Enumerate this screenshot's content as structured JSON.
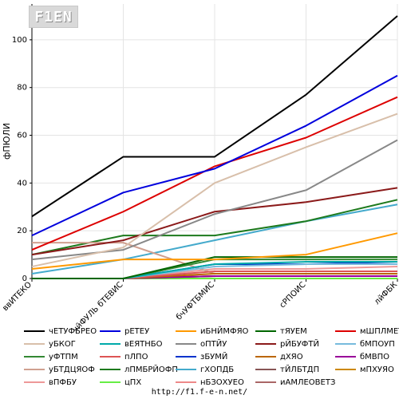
{
  "logo": {
    "text": "F1EN"
  },
  "footer": {
    "url": "http://f1.f-e-n.net/"
  },
  "chart_data": {
    "type": "line",
    "ylabel": "фПЮЛИ",
    "xlabel": "",
    "ylim": [
      0,
      115
    ],
    "yticks": [
      0,
      20,
      40,
      60,
      80,
      100
    ],
    "grid": true,
    "categories": [
      "ввИТЕКО",
      "чйФУЛЬ бТЕВИС",
      "бчУФТБМИС",
      "сРПОИС",
      "лйФБК"
    ],
    "series": [
      {
        "name": "чЕТУФБРЕО",
        "color": "#000000",
        "values": [
          26,
          51,
          51,
          77,
          110
        ]
      },
      {
        "name": "рЕТЕУ",
        "color": "#0000dd",
        "values": [
          18,
          36,
          46,
          64,
          85
        ]
      },
      {
        "name": "иБНЙМФЯО",
        "color": "#ff9900",
        "values": [
          4,
          8,
          8,
          10,
          19
        ]
      },
      {
        "name": "тЯУЕМ",
        "color": "#006600",
        "values": [
          0,
          0,
          9,
          9,
          9
        ]
      },
      {
        "name": "мШПЛМЕТ",
        "color": "#dd0000",
        "values": [
          12,
          28,
          47,
          59,
          76
        ]
      },
      {
        "name": "уБКОГ",
        "color": "#d8bfaa",
        "values": [
          5,
          13,
          40,
          55,
          69
        ]
      },
      {
        "name": "вЕЯТНБО",
        "color": "#00aaaa",
        "values": [
          0,
          0,
          6,
          7,
          7
        ]
      },
      {
        "name": "оПТЙУ",
        "color": "#888888",
        "values": [
          8,
          12,
          27,
          37,
          58
        ]
      },
      {
        "name": "рЙБУФТЙ",
        "color": "#8b1a1a",
        "values": [
          10,
          16,
          28,
          32,
          38
        ]
      },
      {
        "name": "бМПОУП",
        "color": "#77bbdd",
        "values": [
          0,
          0,
          5,
          6,
          6
        ]
      },
      {
        "name": "уФТПМ",
        "color": "#338833",
        "values": [
          0,
          0,
          8,
          8,
          8
        ]
      },
      {
        "name": "пЛПО",
        "color": "#dd5555",
        "values": [
          0,
          0,
          3,
          3,
          3
        ]
      },
      {
        "name": "зБУМЙ",
        "color": "#0033cc",
        "values": [
          0,
          0,
          6,
          6,
          7
        ]
      },
      {
        "name": "дХЯО",
        "color": "#bb6600",
        "values": [
          0,
          0,
          2,
          2,
          2
        ]
      },
      {
        "name": "бМВПО",
        "color": "#990099",
        "values": [
          0,
          0,
          1,
          1,
          1
        ]
      },
      {
        "name": "уБТДЦЯОФ",
        "color": "#d0a090",
        "values": [
          15,
          15,
          2,
          2,
          2
        ]
      },
      {
        "name": "лПМБРЙОФП",
        "color": "#1d7a1d",
        "values": [
          10,
          18,
          18,
          24,
          33
        ]
      },
      {
        "name": "гХОПДБ",
        "color": "#44aacc",
        "values": [
          2,
          8,
          16,
          24,
          31
        ]
      },
      {
        "name": "тЙЛБТДП",
        "color": "#885555",
        "values": [
          0,
          0,
          1,
          1,
          1
        ]
      },
      {
        "name": "мПХУЯО",
        "color": "#cc8800",
        "values": [
          0,
          0,
          1,
          1,
          1
        ]
      },
      {
        "name": "вПФБУ",
        "color": "#ee9999",
        "values": [
          0,
          0,
          4,
          4,
          5
        ]
      },
      {
        "name": "цПХ",
        "color": "#66ee44",
        "values": [
          0,
          0,
          0,
          0,
          0
        ]
      },
      {
        "name": "нБЗОХУЕО",
        "color": "#ee8888",
        "values": [
          0,
          0,
          0,
          0,
          0
        ]
      },
      {
        "name": "иАМЛЕОВЕТЗ",
        "color": "#aa6666",
        "values": [
          0,
          0,
          0,
          0,
          0
        ]
      }
    ],
    "legend": {
      "placement": "bottom",
      "columns": 4,
      "order": [
        [
          "чЕТУФБРЕО",
          "рЕТЕУ",
          "иБНЙМФЯО",
          "тЯУЕМ",
          "мШПЛМЕТ"
        ],
        [
          "уБКОГ",
          "вЕЯТНБО",
          "оПТЙУ",
          "рЙБУФТЙ",
          "бМПОУП"
        ],
        [
          "уФТПМ",
          "пЛПО",
          "зБУМЙ",
          "дХЯО",
          "бМВПО"
        ],
        [
          "уБТДЦЯОФ",
          "лПМБРЙОФП",
          "гХОПДБ",
          "тЙЛБТДП",
          "мПХУЯО"
        ],
        [
          "вПФБУ",
          "цПХ",
          "нБЗОХУЕО",
          "иАМЛЕОВЕТЗ"
        ]
      ]
    }
  }
}
